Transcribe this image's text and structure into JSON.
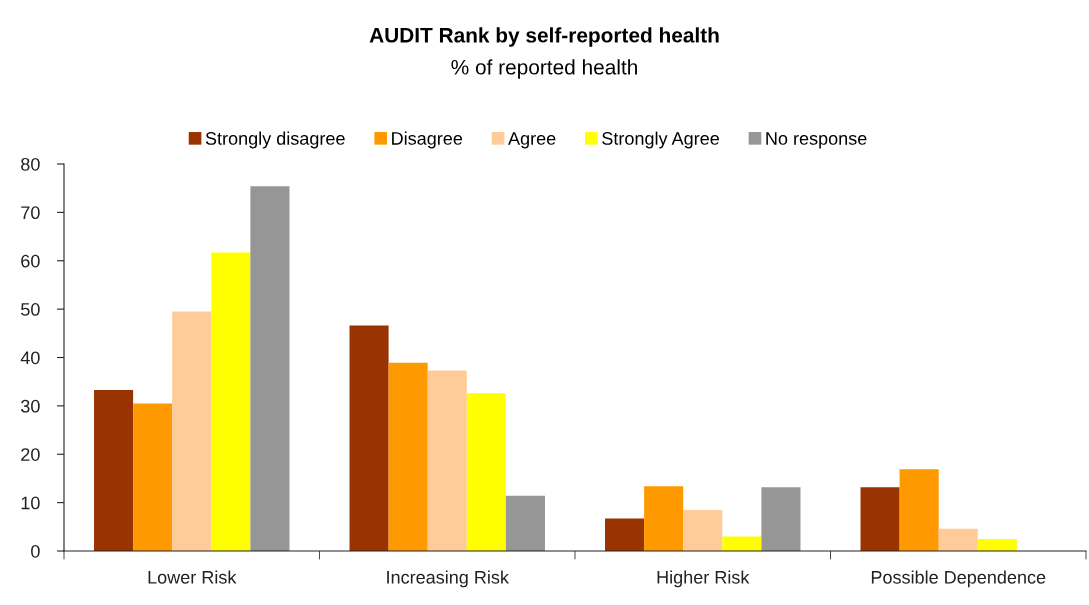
{
  "chart_data": {
    "type": "bar",
    "title": "AUDIT Rank by self-reported health",
    "subtitle": "% of reported health",
    "categories": [
      "Lower Risk",
      "Increasing Risk",
      "Higher Risk",
      "Possible Dependence"
    ],
    "series": [
      {
        "name": "Strongly disagree",
        "color": "#993300",
        "values": [
          33.3,
          46.6,
          6.7,
          13.2
        ]
      },
      {
        "name": "Disagree",
        "color": "#ff9900",
        "values": [
          30.5,
          38.9,
          13.4,
          16.9
        ]
      },
      {
        "name": "Agree",
        "color": "#ffcc99",
        "values": [
          49.5,
          37.3,
          8.5,
          4.6
        ]
      },
      {
        "name": "Strongly Agree",
        "color": "#ffff00",
        "values": [
          61.7,
          32.6,
          3.0,
          2.5
        ]
      },
      {
        "name": "No response",
        "color": "#969696",
        "values": [
          75.4,
          11.4,
          13.2,
          null
        ]
      }
    ],
    "ylim": [
      0,
      80
    ],
    "yticks": [
      0,
      10,
      20,
      30,
      40,
      50,
      60,
      70,
      80
    ],
    "grid": false,
    "legend": "top"
  }
}
